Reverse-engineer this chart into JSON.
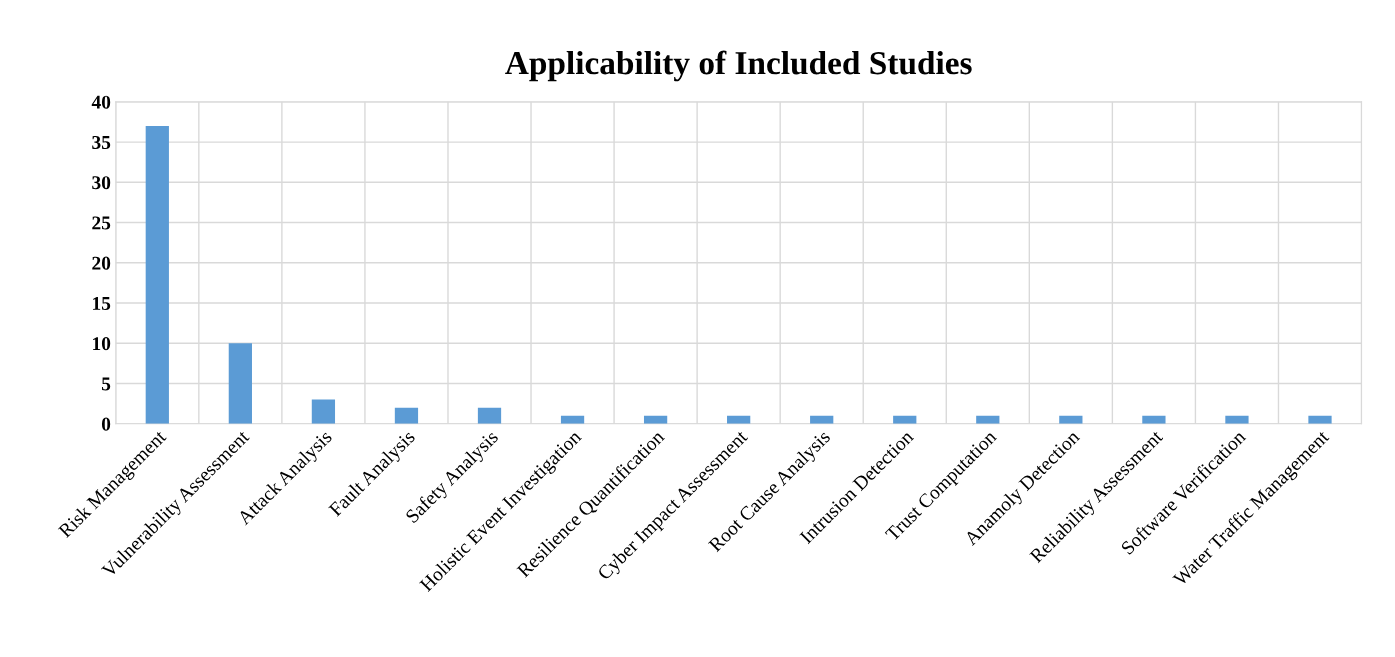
{
  "chart_data": {
    "type": "bar",
    "title": "Applicability of Included Studies",
    "categories": [
      "Risk Management",
      "Vulnerability Assessment",
      "Attack Analysis",
      "Fault Analysis",
      "Safety Analysis",
      "Holistic Event Investigation",
      "Resilience Quantification",
      "Cyber Impact Assessment",
      "Root Cause Analysis",
      "Intrusion Detection",
      "Trust Computation",
      "Anamoly Detection",
      "Reliability Assessment",
      "Software Verification",
      "Water Traffic Management"
    ],
    "values": [
      37,
      10,
      3,
      2,
      2,
      1,
      1,
      1,
      1,
      1,
      1,
      1,
      1,
      1,
      1
    ],
    "color": "#5b9bd5",
    "ylim": [
      0,
      40
    ],
    "yticks": [
      0,
      5,
      10,
      15,
      20,
      25,
      30,
      35,
      40
    ],
    "grid": true
  }
}
